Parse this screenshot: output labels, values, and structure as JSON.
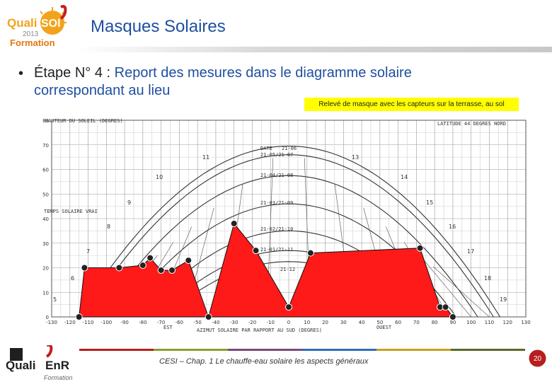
{
  "header": {
    "logo": {
      "brand_left": "Quali",
      "brand_right": "SOl",
      "year": "2013",
      "sub": "Formation"
    },
    "title": "Masques Solaires"
  },
  "bullet": {
    "line1_prefix": "Étape N° 4 : ",
    "line1_rest": "Report des mesures dans le diagramme solaire",
    "line2": "correspondant au lieu"
  },
  "caption": "Relevé de masque avec les capteurs sur la terrasse, au sol",
  "diagram": {
    "ylabel": "HAUTEUR DU SOLEIL (DEGRES)",
    "latitude": "LATITUDE 44 DEGRES NORD",
    "xlabel": "AZIMUT SOLAIRE PAR RAPPORT AU SUD (DEGRES)",
    "est": "EST",
    "ouest": "OUEST",
    "temps": "TEMPS SOLAIRE VRAI",
    "date_header": "DATE",
    "dates": [
      "21-06",
      "21-05/21-07",
      "21-04/21-08",
      "21-03/21-09",
      "21-02/21-10",
      "21-01/21-11",
      "21-12"
    ],
    "hours": [
      "5",
      "6",
      "7",
      "8",
      "9",
      "10",
      "11",
      "13",
      "14",
      "15",
      "16",
      "17",
      "18",
      "19"
    ],
    "y_ticks": [
      "0",
      "10",
      "20",
      "30",
      "40",
      "50",
      "60",
      "70",
      "80"
    ],
    "x_ticks": [
      "-130",
      "-120",
      "-110",
      "-100",
      "-90",
      "-80",
      "-70",
      "-60",
      "-50",
      "-40",
      "-30",
      "-20",
      "-10",
      "0",
      "10",
      "20",
      "30",
      "40",
      "50",
      "60",
      "70",
      "80",
      "90",
      "100",
      "110",
      "120",
      "130"
    ]
  },
  "chart_data": {
    "type": "area",
    "title": "",
    "xlabel": "AZIMUT SOLAIRE PAR RAPPORT AU SUD (DEGRES)",
    "ylabel": "HAUTEUR DU SOLEIL (DEGRES)",
    "xlim": [
      -130,
      130
    ],
    "ylim": [
      0,
      80
    ],
    "grid": true,
    "sun_paths": [
      {
        "name": "21-06",
        "max": 69.5
      },
      {
        "name": "21-05/21-07",
        "max": 66
      },
      {
        "name": "21-04/21-08",
        "max": 57.5
      },
      {
        "name": "21-03/21-09",
        "max": 46
      },
      {
        "name": "21-02/21-10",
        "max": 35
      },
      {
        "name": "21-01/21-11",
        "max": 27
      },
      {
        "name": "21-12",
        "max": 22.5
      }
    ],
    "series": [
      {
        "name": "Relevé de masque",
        "x": [
          -115,
          -112,
          -93,
          -80,
          -76,
          -70,
          -64,
          -55,
          -44,
          -30,
          -18,
          0,
          12,
          72,
          83,
          86,
          90
        ],
        "y": [
          0,
          20,
          20,
          21,
          24,
          19,
          19,
          23,
          0,
          38,
          27,
          4,
          26,
          28,
          4,
          4,
          0
        ]
      }
    ]
  },
  "footer": {
    "logo": {
      "brand_left": "Quali",
      "brand_right": "EnR",
      "sub": "Formation"
    },
    "text": "CESI –  Chap. 1 Le chauffe-eau solaire les aspects généraux",
    "page": "20",
    "line_colors": [
      "#b81e1e",
      "#8aa032",
      "#7a4a7a",
      "#2c6fb5",
      "#c8a020",
      "#5a6a2a"
    ]
  }
}
